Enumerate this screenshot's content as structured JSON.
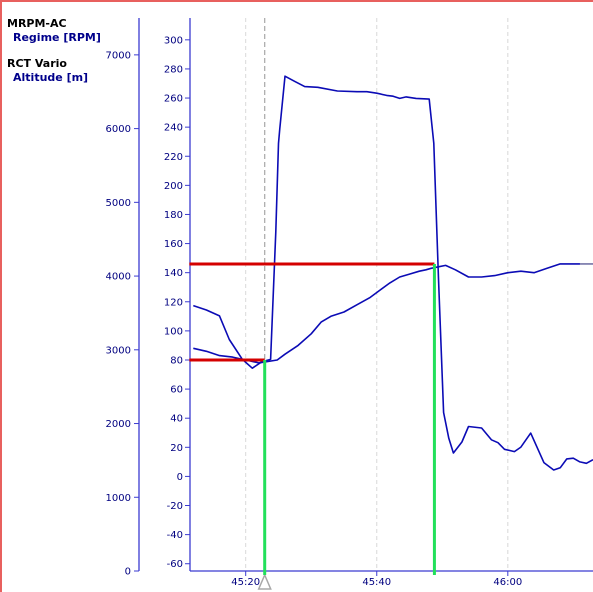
{
  "legend": [
    {
      "title": "MRPM-AC",
      "unit": "Regime [RPM]"
    },
    {
      "title": "RCT Vario",
      "unit": "Altitude [m]"
    }
  ],
  "colors": {
    "trace": "#0b0bb5",
    "axis": "#3b3bd1",
    "tick_label": "#000080",
    "marker_red": "#d40000",
    "marker_green": "#22e05a",
    "cursor": "#a8a8a8",
    "gridline": "#d8d8d8",
    "accent_border": "#e8605e"
  },
  "chart_data": {
    "type": "line",
    "x_unit": "mm:ss",
    "x_range": [
      2711.5,
      2773
    ],
    "x_ticks": [
      {
        "t": 2720,
        "label": "45:20"
      },
      {
        "t": 2740,
        "label": "45:40"
      },
      {
        "t": 2760,
        "label": "46:00"
      }
    ],
    "y_left": {
      "label": "Regime [RPM]",
      "range": [
        0,
        7500
      ],
      "ticks": [
        0,
        1000,
        2000,
        3000,
        4000,
        5000,
        6000,
        7000
      ]
    },
    "y_right": {
      "label": "Altitude [m]",
      "range": [
        -65,
        315
      ],
      "ticks": [
        -60,
        -40,
        -20,
        0,
        20,
        40,
        60,
        80,
        100,
        120,
        140,
        160,
        180,
        200,
        220,
        240,
        260,
        280,
        300
      ]
    },
    "grid": true,
    "series": [
      {
        "name": "MRPM-AC",
        "axis": "left",
        "x": [
          2712,
          2714,
          2716,
          2717.5,
          2719.5,
          2721,
          2722.5,
          2723.8,
          2724.6,
          2725,
          2725.2,
          2726,
          2727.5,
          2729,
          2731,
          2734,
          2737,
          2738.5,
          2740,
          2741.5,
          2742.5,
          2743.5,
          2744.5,
          2746,
          2748,
          2748.7,
          2749.4,
          2750.2,
          2751,
          2751.7,
          2753,
          2754,
          2756,
          2757.5,
          2758.5,
          2759.5,
          2761,
          2762,
          2763.5,
          2765.5,
          2767,
          2768,
          2769,
          2770,
          2771,
          2772,
          2773
        ],
        "y": [
          3600,
          3540,
          3460,
          3140,
          2870,
          2750,
          2840,
          2870,
          4600,
          5800,
          6000,
          6710,
          6640,
          6570,
          6560,
          6510,
          6500,
          6500,
          6480,
          6450,
          6440,
          6410,
          6430,
          6410,
          6400,
          5800,
          4000,
          2150,
          1800,
          1600,
          1750,
          1960,
          1940,
          1780,
          1740,
          1650,
          1620,
          1680,
          1870,
          1470,
          1370,
          1400,
          1520,
          1530,
          1480,
          1460,
          1510
        ]
      },
      {
        "name": "RCT Vario",
        "axis": "right",
        "x": [
          2712,
          2714,
          2716,
          2718,
          2720,
          2722,
          2724.8,
          2726,
          2728,
          2730,
          2731.5,
          2733,
          2735,
          2737,
          2739,
          2740.5,
          2742,
          2743.5,
          2745,
          2746.5,
          2747.5,
          2748.3,
          2749.4,
          2750.5,
          2752,
          2754,
          2756,
          2758,
          2760,
          2762,
          2764,
          2766,
          2768,
          2770,
          2773
        ],
        "y": [
          88,
          86,
          83,
          82,
          80,
          78,
          80,
          84,
          90,
          98,
          106,
          110,
          113,
          118,
          123,
          128,
          133,
          137,
          139,
          141,
          142,
          143,
          144,
          145,
          142,
          137,
          137,
          138,
          140,
          141,
          140,
          143,
          146,
          146,
          146
        ]
      }
    ],
    "annotations": [
      {
        "type": "hline",
        "axis": "right",
        "y": 146,
        "x_from": 2711.4,
        "x_to": 2748.8
      },
      {
        "type": "hline",
        "axis": "right",
        "y": 80,
        "x_from": 2711.4,
        "x_to": 2722.9
      },
      {
        "type": "vline",
        "x": 2722.9,
        "y_from": 80,
        "to": "bottom"
      },
      {
        "type": "vline",
        "x": 2748.8,
        "y_from": 146,
        "to": "bottom"
      },
      {
        "type": "cursor",
        "x": 2722.9
      }
    ]
  }
}
